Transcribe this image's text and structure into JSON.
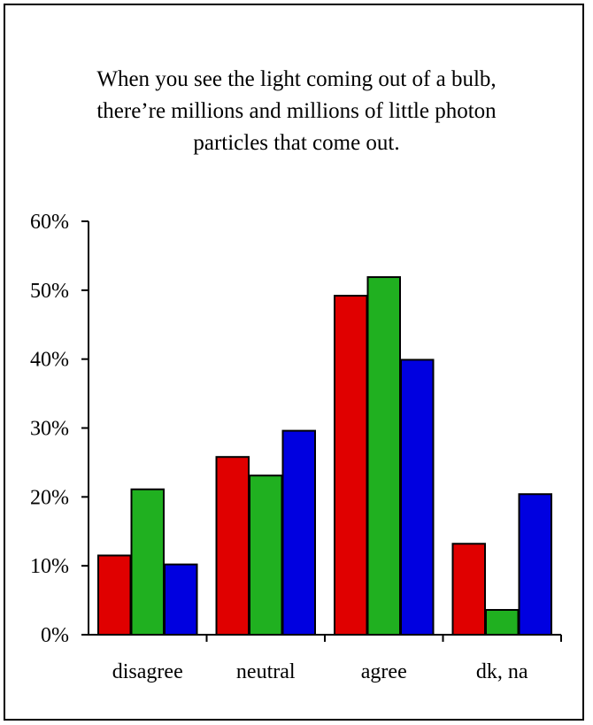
{
  "chart_data": {
    "type": "bar",
    "title": "When you see the light coming out of a bulb, there’re millions and millions of little photon particles that come out.",
    "categories": [
      "disagree",
      "neutral",
      "agree",
      "dk, na"
    ],
    "series": [
      {
        "color": "#e00000",
        "values": [
          11.5,
          25.8,
          49.2,
          13.2
        ]
      },
      {
        "color": "#20b020",
        "values": [
          21.1,
          23.1,
          51.9,
          3.6
        ]
      },
      {
        "color": "#0000e0",
        "values": [
          10.2,
          29.6,
          39.9,
          20.4
        ]
      }
    ],
    "ylim": [
      0,
      60
    ],
    "yticks": [
      0,
      10,
      20,
      30,
      40,
      50,
      60
    ],
    "ytick_labels": [
      "0%",
      "10%",
      "20%",
      "30%",
      "40%",
      "50%",
      "60%"
    ],
    "grid": false,
    "legend": "none"
  }
}
